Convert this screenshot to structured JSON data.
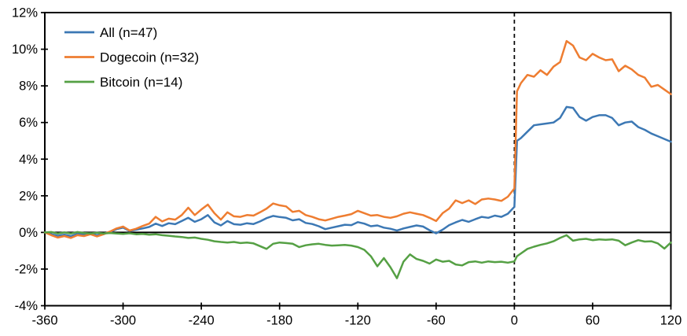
{
  "chart_data": {
    "type": "line",
    "title": "",
    "xlabel": "",
    "ylabel": "",
    "grid": false,
    "legend_position": "top-left-inside",
    "xlim": [
      -360,
      120
    ],
    "ylim": [
      -4,
      12
    ],
    "x_ticks": [
      -360,
      -300,
      -240,
      -180,
      -120,
      -60,
      0,
      60,
      120
    ],
    "x_tick_labels": [
      "-360",
      "-300",
      "-240",
      "-180",
      "-120",
      "-60",
      "0",
      "60",
      "120"
    ],
    "y_ticks": [
      12,
      10,
      8,
      6,
      4,
      2,
      0,
      -2,
      -4
    ],
    "y_tick_labels": [
      "12%",
      "10%",
      "8%",
      "6%",
      "4%",
      "2%",
      "0%",
      "-2%",
      "-4%"
    ],
    "event_line_x": 0,
    "zero_line": true,
    "axis_color": "#000000",
    "x": [
      -360,
      -355,
      -350,
      -345,
      -340,
      -335,
      -330,
      -325,
      -320,
      -315,
      -310,
      -305,
      -300,
      -295,
      -290,
      -285,
      -280,
      -275,
      -270,
      -265,
      -260,
      -255,
      -250,
      -245,
      -240,
      -235,
      -230,
      -225,
      -220,
      -215,
      -210,
      -205,
      -200,
      -195,
      -190,
      -185,
      -180,
      -175,
      -170,
      -165,
      -160,
      -155,
      -150,
      -145,
      -140,
      -135,
      -130,
      -125,
      -120,
      -115,
      -110,
      -105,
      -100,
      -95,
      -90,
      -85,
      -80,
      -75,
      -70,
      -65,
      -60,
      -55,
      -50,
      -45,
      -40,
      -35,
      -30,
      -25,
      -20,
      -15,
      -10,
      -5,
      0,
      2,
      5,
      10,
      15,
      20,
      25,
      30,
      35,
      40,
      45,
      50,
      55,
      60,
      65,
      70,
      75,
      80,
      85,
      90,
      95,
      100,
      105,
      110,
      115,
      120
    ],
    "series": [
      {
        "name": "All (n=47)",
        "color": "#3C78B4",
        "values": [
          0.0,
          -0.1,
          -0.18,
          -0.12,
          -0.2,
          -0.08,
          -0.12,
          -0.05,
          -0.15,
          -0.07,
          0.02,
          0.18,
          0.26,
          0.08,
          0.15,
          0.22,
          0.3,
          0.48,
          0.35,
          0.5,
          0.45,
          0.62,
          0.8,
          0.58,
          0.72,
          0.95,
          0.55,
          0.38,
          0.62,
          0.45,
          0.42,
          0.5,
          0.46,
          0.6,
          0.78,
          0.9,
          0.84,
          0.8,
          0.66,
          0.72,
          0.52,
          0.46,
          0.34,
          0.18,
          0.26,
          0.34,
          0.42,
          0.4,
          0.56,
          0.48,
          0.34,
          0.38,
          0.26,
          0.2,
          0.1,
          0.22,
          0.3,
          0.38,
          0.32,
          0.12,
          -0.05,
          0.15,
          0.4,
          0.55,
          0.68,
          0.58,
          0.72,
          0.85,
          0.8,
          0.92,
          0.85,
          1.02,
          1.4,
          5.0,
          5.15,
          5.5,
          5.85,
          5.9,
          5.95,
          6.0,
          6.25,
          6.85,
          6.8,
          6.3,
          6.1,
          6.3,
          6.4,
          6.4,
          6.25,
          5.85,
          6.0,
          6.05,
          5.75,
          5.6,
          5.4,
          5.25,
          5.1,
          4.95
        ]
      },
      {
        "name": "Dogecoin (n=32)",
        "color": "#EE7D31",
        "values": [
          0.0,
          -0.15,
          -0.28,
          -0.2,
          -0.3,
          -0.15,
          -0.2,
          -0.1,
          -0.22,
          -0.1,
          0.05,
          0.22,
          0.32,
          0.1,
          0.2,
          0.35,
          0.48,
          0.85,
          0.6,
          0.75,
          0.7,
          0.95,
          1.35,
          0.95,
          1.25,
          1.52,
          1.05,
          0.7,
          1.1,
          0.88,
          0.85,
          0.95,
          0.92,
          1.1,
          1.3,
          1.58,
          1.48,
          1.42,
          1.12,
          1.18,
          0.95,
          0.85,
          0.72,
          0.65,
          0.75,
          0.85,
          0.92,
          1.0,
          1.18,
          1.05,
          0.92,
          0.95,
          0.85,
          0.8,
          0.88,
          1.02,
          1.1,
          1.02,
          0.95,
          0.8,
          0.62,
          1.05,
          1.3,
          1.75,
          1.6,
          1.75,
          1.55,
          1.8,
          1.85,
          1.8,
          1.72,
          1.95,
          2.4,
          7.7,
          8.15,
          8.6,
          8.5,
          8.85,
          8.6,
          9.05,
          9.3,
          10.45,
          10.2,
          9.55,
          9.4,
          9.75,
          9.55,
          9.4,
          9.45,
          8.8,
          9.1,
          8.9,
          8.6,
          8.45,
          7.95,
          8.05,
          7.8,
          7.55
        ]
      },
      {
        "name": "Bitcoin (n=14)",
        "color": "#55A044",
        "values": [
          0.0,
          0.02,
          -0.06,
          0.0,
          -0.06,
          0.02,
          -0.03,
          -0.06,
          -0.02,
          -0.06,
          -0.03,
          -0.06,
          -0.08,
          -0.05,
          -0.1,
          -0.08,
          -0.12,
          -0.1,
          -0.15,
          -0.18,
          -0.22,
          -0.25,
          -0.3,
          -0.28,
          -0.35,
          -0.4,
          -0.48,
          -0.52,
          -0.55,
          -0.52,
          -0.58,
          -0.55,
          -0.6,
          -0.75,
          -0.9,
          -0.62,
          -0.55,
          -0.58,
          -0.62,
          -0.8,
          -0.7,
          -0.65,
          -0.62,
          -0.68,
          -0.72,
          -0.7,
          -0.68,
          -0.72,
          -0.8,
          -0.95,
          -1.3,
          -1.85,
          -1.4,
          -1.9,
          -2.5,
          -1.6,
          -1.2,
          -1.45,
          -1.55,
          -1.7,
          -1.48,
          -1.6,
          -1.55,
          -1.75,
          -1.8,
          -1.62,
          -1.58,
          -1.65,
          -1.58,
          -1.62,
          -1.6,
          -1.65,
          -1.58,
          -1.3,
          -1.15,
          -0.9,
          -0.78,
          -0.68,
          -0.6,
          -0.48,
          -0.3,
          -0.15,
          -0.45,
          -0.38,
          -0.35,
          -0.42,
          -0.38,
          -0.4,
          -0.38,
          -0.45,
          -0.7,
          -0.55,
          -0.42,
          -0.5,
          -0.48,
          -0.6,
          -0.88,
          -0.55
        ]
      }
    ]
  }
}
